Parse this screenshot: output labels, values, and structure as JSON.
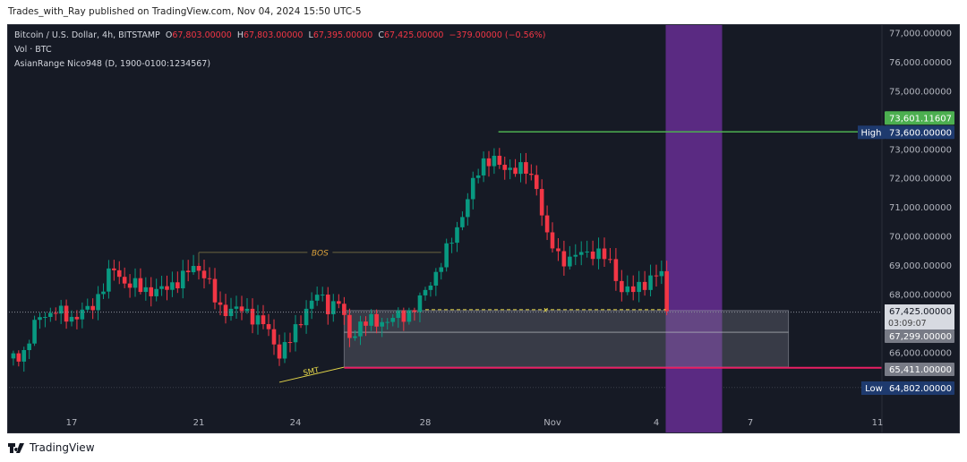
{
  "publisher_line": "Trades_with_Ray published on TradingView.com, Nov 04, 2024 15:50 UTC-5",
  "legend": {
    "symbol": "Bitcoin / U.S. Dollar, 4h, BITSTAMP",
    "o_label": "O",
    "o": "67,803.00000",
    "h_label": "H",
    "h": "67,803.00000",
    "l_label": "L",
    "l": "67,395.00000",
    "c_label": "C",
    "c": "67,425.00000",
    "change": "−379.00000 (−0.56%)",
    "vol": "Vol · BTC",
    "indicator": "AsianRange Nico948 (D, 1900-0100:1234567)"
  },
  "brand": "TradingView",
  "colors": {
    "bg": "#161a25",
    "up": "#089981",
    "down": "#f23645",
    "purple": "#5a2a82",
    "high": "#4caf50",
    "low_line": "#e91e63",
    "label_blue": "#1e3a6e"
  },
  "chart_data": {
    "type": "candlestick",
    "title": "Bitcoin / U.S. Dollar, 4h, BITSTAMP",
    "ylim": [
      64700,
      77400
    ],
    "y_ticks": [
      77000,
      76000,
      75000,
      74000,
      73000,
      72000,
      71000,
      70000,
      69000,
      68000,
      66000,
      65000
    ],
    "y_tick_labels": [
      "77,000.00000",
      "76,000.00000",
      "75,000.00000",
      "",
      "73,000.00000",
      "72,000.00000",
      "71,000.00000",
      "70,000.00000",
      "69,000.00000",
      "68,000.00000",
      "66,000.00000",
      ""
    ],
    "x_ticks": [
      {
        "day": 17,
        "label": "17"
      },
      {
        "day": 21,
        "label": "21"
      },
      {
        "day": 24,
        "label": "24"
      },
      {
        "day": 28,
        "label": "28"
      },
      {
        "day": 32,
        "label": "Nov"
      },
      {
        "day": 35,
        "label": "4"
      },
      {
        "day": 38,
        "label": "7"
      },
      {
        "day": 42,
        "label": "11"
      }
    ],
    "close_path": [
      [
        15,
        65800
      ],
      [
        15.5,
        66000
      ],
      [
        16,
        67300
      ],
      [
        16.5,
        67400
      ],
      [
        17,
        67200
      ],
      [
        17.6,
        67500
      ],
      [
        18,
        68300
      ],
      [
        18.3,
        68900
      ],
      [
        18.7,
        68400
      ],
      [
        19.2,
        68200
      ],
      [
        19.8,
        68100
      ],
      [
        20.5,
        68600
      ],
      [
        20.9,
        69000
      ],
      [
        21.2,
        68700
      ],
      [
        21.6,
        67500
      ],
      [
        22,
        67500
      ],
      [
        22.5,
        67400
      ],
      [
        23,
        67000
      ],
      [
        23.5,
        66000
      ],
      [
        23.9,
        66500
      ],
      [
        24.3,
        67500
      ],
      [
        24.7,
        68000
      ],
      [
        25,
        67600
      ],
      [
        25.4,
        67800
      ],
      [
        25.6,
        66400
      ],
      [
        26,
        67000
      ],
      [
        26.8,
        67100
      ],
      [
        27.4,
        67300
      ],
      [
        27.8,
        67700
      ],
      [
        28.2,
        68500
      ],
      [
        28.6,
        69300
      ],
      [
        29,
        70300
      ],
      [
        29.4,
        71500
      ],
      [
        29.8,
        72600
      ],
      [
        30.1,
        72700
      ],
      [
        30.4,
        72300
      ],
      [
        30.8,
        72400
      ],
      [
        31.2,
        72200
      ],
      [
        31.5,
        71800
      ],
      [
        31.8,
        70000
      ],
      [
        32.2,
        69300
      ],
      [
        32.5,
        69200
      ],
      [
        32.8,
        69400
      ],
      [
        33.2,
        69500
      ],
      [
        33.6,
        69200
      ],
      [
        34,
        68200
      ],
      [
        34.4,
        68100
      ],
      [
        34.8,
        68600
      ],
      [
        35.2,
        68700
      ],
      [
        35.4,
        67425
      ]
    ],
    "annotations": {
      "bos": {
        "label": "BOS",
        "price": 69450,
        "from_day": 21,
        "to_day": 28.5
      },
      "smt": {
        "label": "SMT",
        "from": [
          23.5,
          64980
        ],
        "to": [
          25.5,
          65500
        ]
      },
      "x_level": {
        "label": "x",
        "price": 67480,
        "from_day": 28,
        "to_day": 35.3
      },
      "high": {
        "label": "High",
        "price": 73600,
        "value": "73,600.00000",
        "from_day": 30.3
      },
      "high_tag": "73,601.11607",
      "low": {
        "label": "Low",
        "price": 64802,
        "value": "64,802.00000"
      },
      "last_price": {
        "value": "67,425.00000",
        "countdown": "03:09:07",
        "price": 67425
      },
      "range_mid": {
        "value": "67,299.00000",
        "price": 66700
      },
      "range_low": {
        "value": "65,411.00000",
        "price": 65480,
        "from_day": 25.5
      },
      "asian_box": {
        "from_day": 25.5,
        "to_day": 39.2,
        "top": 67450,
        "bottom": 65500
      },
      "session": {
        "from_day": 35.3,
        "to_day": 37.1
      }
    }
  }
}
